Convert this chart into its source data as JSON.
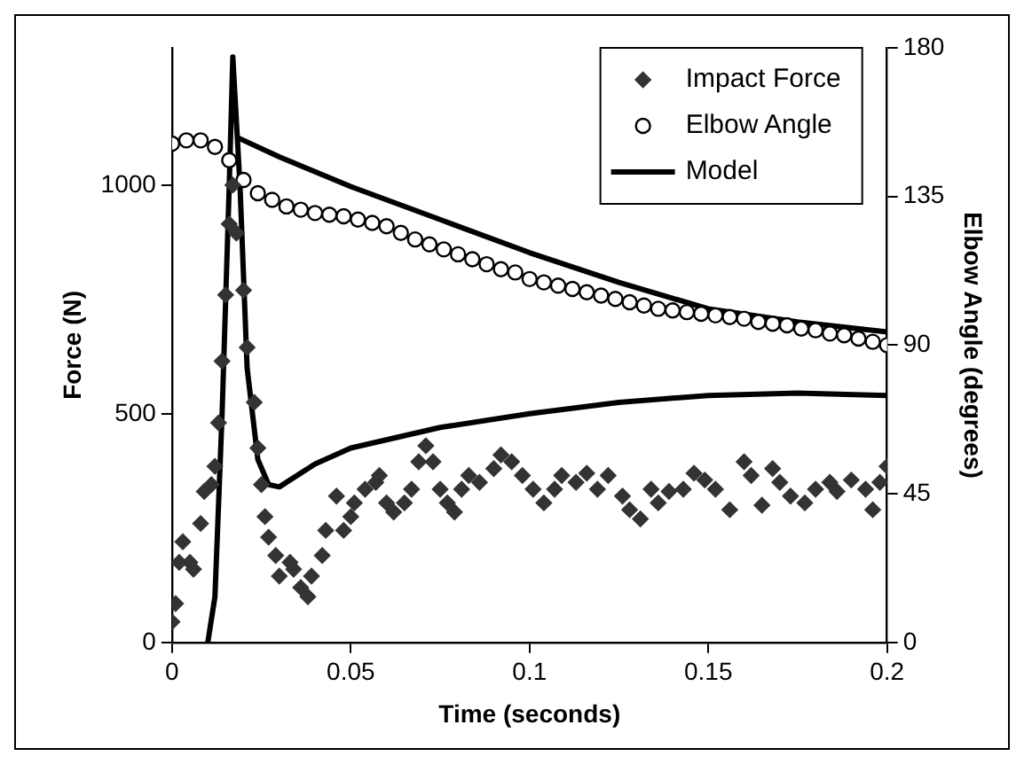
{
  "chart_data": {
    "type": "scatter",
    "xlabel": "Time (seconds)",
    "ylabel": "Force (N)",
    "y2label": "Elbow Angle (degrees)",
    "xlim": [
      0,
      0.2
    ],
    "xticks": [
      0,
      0.05,
      0.1,
      0.15,
      0.2
    ],
    "ylim": [
      0,
      1300
    ],
    "yticks": [
      0,
      500,
      1000
    ],
    "y2lim": [
      0,
      180
    ],
    "y2ticks": [
      0,
      45,
      90,
      135,
      180
    ],
    "grid": false,
    "legend": "top right",
    "series": [
      {
        "name": "Impact Force",
        "type": "scatter",
        "marker": "diamond",
        "color": "#333333",
        "x": [
          0,
          0.001,
          0.002,
          0.003,
          0.005,
          0.006,
          0.008,
          0.009,
          0.011,
          0.012,
          0.013,
          0.014,
          0.015,
          0.016,
          0.017,
          0.018,
          0.02,
          0.021,
          0.023,
          0.024,
          0.025,
          0.026,
          0.027,
          0.029,
          0.03,
          0.033,
          0.034,
          0.036,
          0.038,
          0.039,
          0.042,
          0.043,
          0.046,
          0.048,
          0.05,
          0.051,
          0.054,
          0.057,
          0.058,
          0.06,
          0.062,
          0.065,
          0.067,
          0.069,
          0.071,
          0.073,
          0.075,
          0.077,
          0.079,
          0.081,
          0.083,
          0.086,
          0.09,
          0.092,
          0.095,
          0.098,
          0.101,
          0.104,
          0.107,
          0.109,
          0.113,
          0.116,
          0.119,
          0.122,
          0.126,
          0.128,
          0.131,
          0.134,
          0.136,
          0.139,
          0.143,
          0.146,
          0.149,
          0.152,
          0.156,
          0.16,
          0.162,
          0.165,
          0.168,
          0.17,
          0.173,
          0.177,
          0.18,
          0.184,
          0.186,
          0.19,
          0.194,
          0.196,
          0.198,
          0.2
        ],
        "values": [
          45,
          85,
          175,
          220,
          175,
          160,
          260,
          330,
          345,
          385,
          480,
          615,
          760,
          915,
          1000,
          895,
          770,
          645,
          525,
          425,
          345,
          275,
          230,
          190,
          145,
          175,
          160,
          120,
          100,
          145,
          190,
          245,
          320,
          245,
          275,
          305,
          335,
          350,
          365,
          305,
          285,
          305,
          335,
          395,
          430,
          395,
          335,
          305,
          285,
          335,
          365,
          350,
          380,
          410,
          395,
          365,
          335,
          305,
          335,
          365,
          350,
          370,
          335,
          365,
          320,
          290,
          270,
          335,
          305,
          330,
          335,
          370,
          355,
          335,
          290,
          395,
          365,
          300,
          380,
          350,
          320,
          305,
          335,
          350,
          330,
          355,
          335,
          290,
          350,
          385
        ]
      },
      {
        "name": "Elbow Angle",
        "type": "scatter",
        "marker": "circle",
        "color": "#000000",
        "axis": "y2",
        "x": [
          0,
          0.004,
          0.008,
          0.012,
          0.016,
          0.02,
          0.024,
          0.028,
          0.032,
          0.036,
          0.04,
          0.044,
          0.048,
          0.052,
          0.056,
          0.06,
          0.064,
          0.068,
          0.072,
          0.076,
          0.08,
          0.084,
          0.088,
          0.092,
          0.096,
          0.1,
          0.104,
          0.108,
          0.112,
          0.116,
          0.12,
          0.124,
          0.128,
          0.132,
          0.136,
          0.14,
          0.144,
          0.148,
          0.152,
          0.156,
          0.16,
          0.164,
          0.168,
          0.172,
          0.176,
          0.18,
          0.184,
          0.188,
          0.192,
          0.196,
          0.2
        ],
        "values": [
          151,
          152,
          152,
          150,
          146,
          140,
          136,
          134,
          132,
          131,
          130,
          129.5,
          129,
          128,
          127,
          126,
          124,
          122,
          120.5,
          119,
          117.5,
          116,
          114.5,
          113,
          112,
          110,
          109,
          108,
          107,
          106,
          105,
          104,
          103,
          102,
          101,
          100.5,
          100,
          99.5,
          99,
          98.5,
          98,
          97,
          96.5,
          96,
          95,
          94.5,
          93.5,
          93,
          92,
          91,
          90
        ]
      },
      {
        "name": "Model",
        "type": "line",
        "marker": "none",
        "line_style": "solid",
        "color": "#000000",
        "x": [
          0.01,
          0.012,
          0.014,
          0.016,
          0.017,
          0.019,
          0.021,
          0.024,
          0.027,
          0.03,
          0.04,
          0.05,
          0.075,
          0.1,
          0.125,
          0.15,
          0.175,
          0.2
        ],
        "values": [
          0,
          100,
          500,
          1000,
          1280,
          1000,
          600,
          400,
          345,
          340,
          390,
          425,
          470,
          500,
          525,
          540,
          545,
          540
        ]
      },
      {
        "type": "line",
        "marker": "none",
        "line_style": "solid",
        "color": "#000000",
        "axis": "y2",
        "x": [
          0.018,
          0.03,
          0.05,
          0.075,
          0.1,
          0.125,
          0.15,
          0.175,
          0.2
        ],
        "values": [
          153,
          147,
          138,
          128,
          118,
          109,
          101,
          97,
          94
        ]
      }
    ]
  }
}
